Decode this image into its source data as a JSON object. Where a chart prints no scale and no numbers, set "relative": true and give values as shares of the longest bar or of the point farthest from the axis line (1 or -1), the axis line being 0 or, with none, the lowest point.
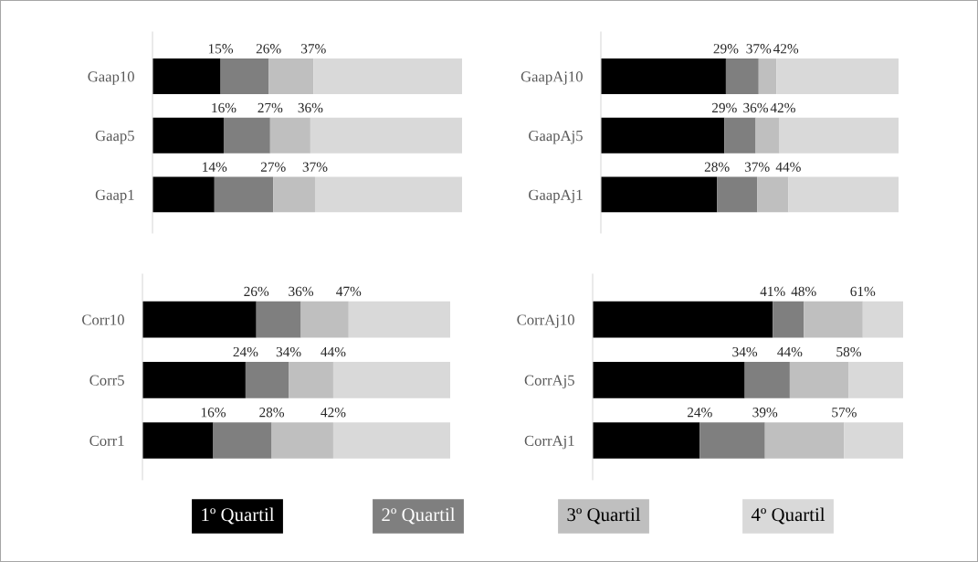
{
  "chart_data": [
    {
      "type": "bar",
      "orientation": "horizontal",
      "stacked": true,
      "relative": true,
      "legend": "bottom",
      "categories": [
        "Gaap10",
        "Gaap5",
        "Gaap1"
      ],
      "series": [
        {
          "name": "1º Quartil",
          "color": "#000000",
          "values": [
            0.22,
            0.23,
            0.2
          ]
        },
        {
          "name": "2º Quartil",
          "color": "#7f7f7f",
          "values": [
            0.155,
            0.15,
            0.19
          ]
        },
        {
          "name": "3º Quartil",
          "color": "#bfbfbf",
          "values": [
            0.145,
            0.13,
            0.135
          ]
        },
        {
          "name": "4º Quartil",
          "color": "#d9d9d9",
          "values": [
            0.48,
            0.49,
            0.475
          ]
        }
      ],
      "annotations": [
        {
          "text": "15%",
          "x": 0.22,
          "y": "Gaap10"
        },
        {
          "text": "26%",
          "x": 0.375,
          "y": "Gaap10"
        },
        {
          "text": "37%",
          "x": 0.52,
          "y": "Gaap10"
        },
        {
          "text": "16%",
          "x": 0.23,
          "y": "Gaap5"
        },
        {
          "text": "27%",
          "x": 0.38,
          "y": "Gaap5"
        },
        {
          "text": "36%",
          "x": 0.51,
          "y": "Gaap5"
        },
        {
          "text": "14%",
          "x": 0.2,
          "y": "Gaap1"
        },
        {
          "text": "27%",
          "x": 0.39,
          "y": "Gaap1"
        },
        {
          "text": "37%",
          "x": 0.525,
          "y": "Gaap1"
        }
      ]
    },
    {
      "type": "bar",
      "orientation": "horizontal",
      "stacked": true,
      "relative": true,
      "categories": [
        "GaapAj10",
        "GaapAj5",
        "GaapAj1"
      ],
      "series": [
        {
          "color": "#000000",
          "values": [
            0.42,
            0.415,
            0.39
          ]
        },
        {
          "color": "#7f7f7f",
          "values": [
            0.11,
            0.105,
            0.135
          ]
        },
        {
          "color": "#bfbfbf",
          "values": [
            0.06,
            0.08,
            0.105
          ]
        },
        {
          "color": "#d9d9d9",
          "values": [
            0.41,
            0.4,
            0.37
          ]
        }
      ],
      "annotations": [
        {
          "text": "29%",
          "x": 0.42,
          "y": "GaapAj10"
        },
        {
          "text": "37%",
          "x": 0.53,
          "y": "GaapAj10"
        },
        {
          "text": "42%",
          "x": 0.59,
          "y": "GaapAj10"
        },
        {
          "text": "29%",
          "x": 0.415,
          "y": "GaapAj5"
        },
        {
          "text": "36%",
          "x": 0.52,
          "y": "GaapAj5"
        },
        {
          "text": "42%",
          "x": 0.6,
          "y": "GaapAj5"
        },
        {
          "text": "28%",
          "x": 0.39,
          "y": "GaapAj1"
        },
        {
          "text": "37%",
          "x": 0.525,
          "y": "GaapAj1"
        },
        {
          "text": "44%",
          "x": 0.63,
          "y": "GaapAj1"
        }
      ]
    },
    {
      "type": "bar",
      "orientation": "horizontal",
      "stacked": true,
      "relative": true,
      "categories": [
        "Corr10",
        "Corr5",
        "Corr1"
      ],
      "series": [
        {
          "color": "#000000",
          "values": [
            0.37,
            0.335,
            0.23
          ]
        },
        {
          "color": "#7f7f7f",
          "values": [
            0.145,
            0.14,
            0.19
          ]
        },
        {
          "color": "#bfbfbf",
          "values": [
            0.155,
            0.145,
            0.2
          ]
        },
        {
          "color": "#d9d9d9",
          "values": [
            0.33,
            0.38,
            0.38
          ]
        }
      ],
      "annotations": [
        {
          "text": "26%",
          "x": 0.37,
          "y": "Corr10"
        },
        {
          "text": "36%",
          "x": 0.515,
          "y": "Corr10"
        },
        {
          "text": "47%",
          "x": 0.67,
          "y": "Corr10"
        },
        {
          "text": "24%",
          "x": 0.335,
          "y": "Corr5"
        },
        {
          "text": "34%",
          "x": 0.475,
          "y": "Corr5"
        },
        {
          "text": "44%",
          "x": 0.62,
          "y": "Corr5"
        },
        {
          "text": "16%",
          "x": 0.23,
          "y": "Corr1"
        },
        {
          "text": "28%",
          "x": 0.42,
          "y": "Corr1"
        },
        {
          "text": "42%",
          "x": 0.62,
          "y": "Corr1"
        }
      ]
    },
    {
      "type": "bar",
      "orientation": "horizontal",
      "stacked": true,
      "relative": true,
      "categories": [
        "CorrAj10",
        "CorrAj5",
        "CorrAj1"
      ],
      "series": [
        {
          "color": "#000000",
          "values": [
            0.58,
            0.49,
            0.345
          ]
        },
        {
          "color": "#7f7f7f",
          "values": [
            0.1,
            0.145,
            0.21
          ]
        },
        {
          "color": "#bfbfbf",
          "values": [
            0.19,
            0.19,
            0.255
          ]
        },
        {
          "color": "#d9d9d9",
          "values": [
            0.13,
            0.175,
            0.19
          ]
        }
      ],
      "annotations": [
        {
          "text": "41%",
          "x": 0.58,
          "y": "CorrAj10"
        },
        {
          "text": "48%",
          "x": 0.68,
          "y": "CorrAj10"
        },
        {
          "text": "61%",
          "x": 0.87,
          "y": "CorrAj10"
        },
        {
          "text": "34%",
          "x": 0.49,
          "y": "CorrAj5"
        },
        {
          "text": "44%",
          "x": 0.635,
          "y": "CorrAj5"
        },
        {
          "text": "58%",
          "x": 0.825,
          "y": "CorrAj5"
        },
        {
          "text": "24%",
          "x": 0.345,
          "y": "CorrAj1"
        },
        {
          "text": "39%",
          "x": 0.555,
          "y": "CorrAj1"
        },
        {
          "text": "57%",
          "x": 0.81,
          "y": "CorrAj1"
        }
      ]
    }
  ]
}
